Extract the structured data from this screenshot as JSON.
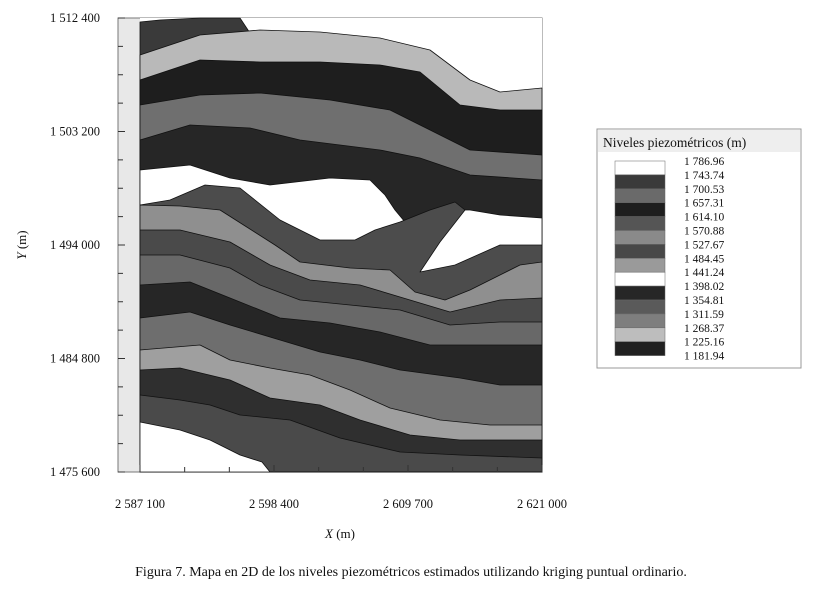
{
  "caption": "Figura 7. Mapa en 2D de los niveles piezométricos estimados utilizando kriging puntual ordinario.",
  "chart_data": {
    "type": "heatmap",
    "subtype": "filled-contour-map",
    "xlabel_var": "X",
    "xlabel_unit": " (m)",
    "ylabel_var": "Y",
    "ylabel_unit": " (m)",
    "xlim": [
      2587100,
      2621000
    ],
    "ylim": [
      1475600,
      1512400
    ],
    "x_ticks": [
      {
        "value": 2587100,
        "label": "2 587 100"
      },
      {
        "value": 2598400,
        "label": "2 598 400"
      },
      {
        "value": 2609700,
        "label": "2 609 700"
      },
      {
        "value": 2621000,
        "label": "2 621 000"
      }
    ],
    "y_ticks": [
      {
        "value": 1512400,
        "label": "1 512 400"
      },
      {
        "value": 1503200,
        "label": "1 503 200"
      },
      {
        "value": 1494000,
        "label": "1 494 000"
      },
      {
        "value": 1484800,
        "label": "1 484 800"
      },
      {
        "value": 1475600,
        "label": "1 475 600"
      }
    ],
    "grid": false,
    "legend": {
      "title": "Niveles piezométricos (m)",
      "placement": "right",
      "levels": [
        {
          "label": "1 786.96",
          "value": 1786.96
        },
        {
          "label": "1 743.74",
          "value": 1743.74
        },
        {
          "label": "1 700.53",
          "value": 1700.53
        },
        {
          "label": "1 657.31",
          "value": 1657.31
        },
        {
          "label": "1 614.10",
          "value": 1614.1
        },
        {
          "label": "1 570.88",
          "value": 1570.88
        },
        {
          "label": "1 527.67",
          "value": 1527.67
        },
        {
          "label": "1 484.45",
          "value": 1484.45
        },
        {
          "label": "1 441.24",
          "value": 1441.24
        },
        {
          "label": "1 398.02",
          "value": 1398.02
        },
        {
          "label": "1 354.81",
          "value": 1354.81
        },
        {
          "label": "1 311.59",
          "value": 1311.59
        },
        {
          "label": "1 268.37",
          "value": 1268.37
        },
        {
          "label": "1 225.16",
          "value": 1225.16
        },
        {
          "label": "1 181.94",
          "value": 1181.94
        }
      ],
      "colors": [
        "#ffffff",
        "#3a3a3a",
        "#6a6a6a",
        "#1e1e1e",
        "#555555",
        "#8a8a8a",
        "#484848",
        "#9a9a9a",
        "#ffffff",
        "#262626",
        "#5a5a5a",
        "#7e7e7e",
        "#bdbdbd",
        "#202020",
        "#5e5e5e"
      ]
    },
    "contour_bands_colors": [
      "#ffffff",
      "#3a3a3a",
      "#b9b9b9",
      "#1e1e1e",
      "#6f6f6f",
      "#262626",
      "#ffffff",
      "#4c4c4c",
      "#8f8f8f",
      "#4a4a4a",
      "#686868",
      "#262626",
      "#6e6e6e",
      "#9f9f9f",
      "#2f2f2f",
      "#4a4a4a",
      "#ffffff"
    ]
  }
}
